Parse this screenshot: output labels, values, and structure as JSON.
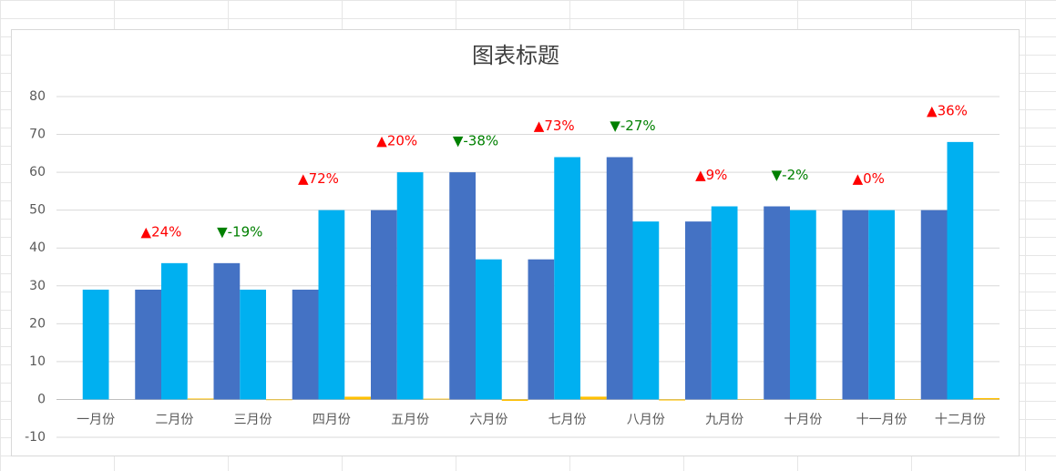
{
  "chart_data": {
    "type": "bar",
    "title": "图表标题",
    "categories": [
      "一月份",
      "二月份",
      "三月份",
      "四月份",
      "五月份",
      "六月份",
      "七月份",
      "八月份",
      "九月份",
      "十月份",
      "十一月份",
      "十二月份"
    ],
    "series": [
      {
        "color": "#4472c4",
        "values": [
          null,
          29,
          36,
          29,
          50,
          60,
          37,
          64,
          47,
          51,
          50,
          50
        ]
      },
      {
        "color": "#00b0f0",
        "values": [
          29,
          36,
          29,
          50,
          60,
          37,
          64,
          47,
          51,
          50,
          50,
          68
        ]
      },
      {
        "color": "#ffc000",
        "values": [
          null,
          0.24,
          -0.19,
          0.72,
          0.2,
          -0.38,
          0.73,
          -0.27,
          0.09,
          -0.02,
          0,
          0.36
        ],
        "value_labels": [
          null,
          "▲24%",
          "▼-19%",
          "▲72%",
          "▲20%",
          "▼-38%",
          "▲73%",
          "▼-27%",
          "▲9%",
          "▼-2%",
          "▲0%",
          "▲36%"
        ],
        "up_color": "#ff0000",
        "down_color": "#008000"
      }
    ],
    "ylim": [
      -10,
      80
    ],
    "yticks": [
      -10,
      0,
      10,
      20,
      30,
      40,
      50,
      60,
      70,
      80
    ],
    "grid": true
  }
}
